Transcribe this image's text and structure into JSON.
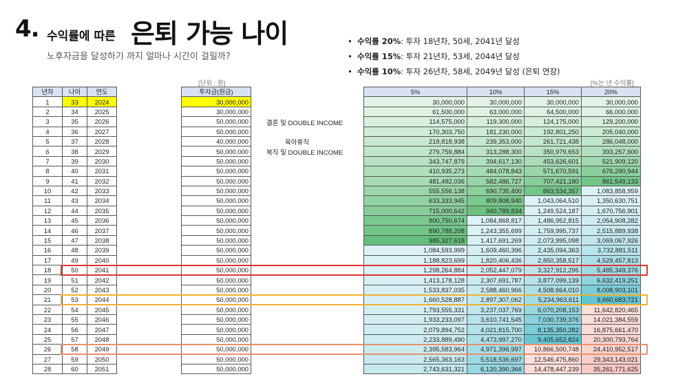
{
  "title": {
    "num": "4.",
    "small": "수익률에 따른",
    "big": "은퇴 가능 나이"
  },
  "subtitle": "노후자금을 달성하기 까지 얼마나 시간이 걸릴까?",
  "bullets": [
    {
      "rate": "수익률 20%",
      "text": ": 투자 18년차, 50세, 2041년 달성"
    },
    {
      "rate": "수익률 15%",
      "text": ": 투자 21년차, 53세, 2044년 달성"
    },
    {
      "rate": "수익률 10%",
      "text": ": 투자 26년차, 58세, 2049년 달성 (은퇴 연장)"
    }
  ],
  "unit_label": "[단위 : 원]",
  "rate_label": "[%는 년 수익률]",
  "left_headers": [
    "년차",
    "나이",
    "연도"
  ],
  "invest_header": "투자금(원금)",
  "rate_headers": [
    "5%",
    "10%",
    "15%",
    "20%"
  ],
  "notes": [
    {
      "row": 3,
      "text": "결혼 및 DOUBLE INCOME"
    },
    {
      "row": 5,
      "text": "육아휴직"
    },
    {
      "row": 6,
      "text": "복직 및 DOUBLE INCOME"
    }
  ],
  "colors": {
    "header": "#d8e2f1",
    "start_highlight": "#ffff00",
    "red": "#e03030",
    "orange": "#f0b030",
    "salmon": "#e8906a"
  },
  "rows": [
    [
      "1",
      "33",
      "2024",
      "30,000,000",
      "30,000,000",
      "30,000,000",
      "30,000,000",
      "30,000,000"
    ],
    [
      "2",
      "34",
      "2025",
      "30,000,000",
      "61,500,000",
      "63,000,000",
      "64,500,000",
      "66,000,000"
    ],
    [
      "3",
      "35",
      "2026",
      "50,000,000",
      "114,575,000",
      "119,300,000",
      "124,175,000",
      "129,200,000"
    ],
    [
      "4",
      "36",
      "2027",
      "50,000,000",
      "170,303,750",
      "181,230,000",
      "192,801,250",
      "205,040,000"
    ],
    [
      "5",
      "37",
      "2028",
      "40,000,000",
      "218,818,938",
      "239,353,000",
      "261,721,438",
      "286,048,000"
    ],
    [
      "6",
      "38",
      "2029",
      "50,000,000",
      "279,759,884",
      "313,288,300",
      "350,979,653",
      "393,257,600"
    ],
    [
      "7",
      "39",
      "2030",
      "50,000,000",
      "343,747,879",
      "394,617,130",
      "453,626,601",
      "521,909,120"
    ],
    [
      "8",
      "40",
      "2031",
      "50,000,000",
      "410,935,273",
      "484,078,843",
      "571,670,591",
      "676,290,944"
    ],
    [
      "9",
      "41",
      "2032",
      "50,000,000",
      "481,482,036",
      "582,486,727",
      "707,421,180",
      "861,549,133"
    ],
    [
      "10",
      "42",
      "2033",
      "50,000,000",
      "555,556,138",
      "690,735,400",
      "863,534,357",
      "1,083,858,959"
    ],
    [
      "11",
      "43",
      "2034",
      "50,000,000",
      "633,333,945",
      "809,808,940",
      "1,043,064,510",
      "1,350,630,751"
    ],
    [
      "12",
      "44",
      "2035",
      "50,000,000",
      "715,000,642",
      "940,789,834",
      "1,249,524,187",
      "1,670,756,901"
    ],
    [
      "13",
      "45",
      "2036",
      "50,000,000",
      "800,750,674",
      "1,084,868,817",
      "1,486,952,815",
      "2,054,908,282"
    ],
    [
      "14",
      "46",
      "2037",
      "50,000,000",
      "890,788,208",
      "1,243,355,699",
      "1,759,995,737",
      "2,515,889,938"
    ],
    [
      "15",
      "47",
      "2038",
      "50,000,000",
      "985,327,618",
      "1,417,691,269",
      "2,073,995,098",
      "3,069,067,926"
    ],
    [
      "16",
      "48",
      "2039",
      "50,000,000",
      "1,084,593,999",
      "1,609,460,396",
      "2,435,094,363",
      "3,732,881,511"
    ],
    [
      "17",
      "49",
      "2040",
      "50,000,000",
      "1,188,823,699",
      "1,820,406,436",
      "2,850,358,517",
      "4,529,457,813"
    ],
    [
      "18",
      "50",
      "2041",
      "50,000,000",
      "1,298,264,884",
      "2,052,447,079",
      "3,327,912,295",
      "5,485,349,376"
    ],
    [
      "19",
      "51",
      "2042",
      "50,000,000",
      "1,413,178,128",
      "2,307,691,787",
      "3,877,099,139",
      "6,632,419,251"
    ],
    [
      "20",
      "52",
      "2043",
      "50,000,000",
      "1,533,837,035",
      "2,588,460,966",
      "4,508,664,010",
      "8,008,903,101"
    ],
    [
      "21",
      "53",
      "2044",
      "50,000,000",
      "1,660,528,887",
      "2,897,307,062",
      "5,234,963,611",
      "9,660,683,721"
    ],
    [
      "22",
      "54",
      "2045",
      "50,000,000",
      "1,793,555,331",
      "3,237,037,769",
      "6,070,208,153",
      "11,642,820,465"
    ],
    [
      "23",
      "55",
      "2046",
      "50,000,000",
      "1,933,233,097",
      "3,610,741,545",
      "7,030,739,376",
      "14,021,384,559"
    ],
    [
      "24",
      "56",
      "2047",
      "50,000,000",
      "2,079,894,752",
      "4,021,815,700",
      "8,135,350,282",
      "16,875,661,470"
    ],
    [
      "25",
      "57",
      "2048",
      "50,000,000",
      "2,233,889,490",
      "4,473,997,270",
      "9,405,652,824",
      "20,300,793,764"
    ],
    [
      "26",
      "58",
      "2049",
      "50,000,000",
      "2,395,583,964",
      "4,971,396,997",
      "10,866,500,748",
      "24,410,952,517"
    ],
    [
      "27",
      "59",
      "2050",
      "50,000,000",
      "2,565,363,163",
      "5,518,536,697",
      "12,546,475,860",
      "29,343,143,021"
    ],
    [
      "28",
      "60",
      "2051",
      "50,000,000",
      "2,743,631,321",
      "6,120,390,366",
      "14,478,447,239",
      "35,261,771,625"
    ]
  ]
}
